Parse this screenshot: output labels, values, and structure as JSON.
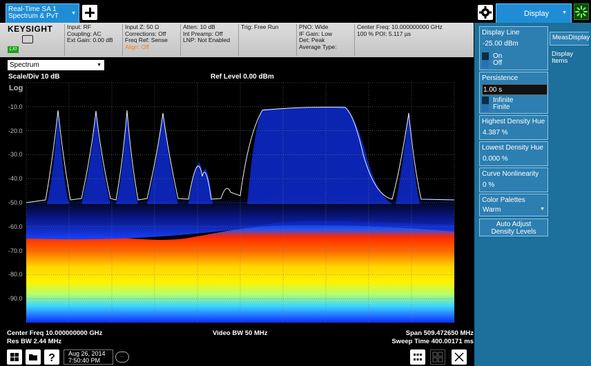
{
  "top_bar": {
    "active_tab": {
      "line1": "Real-Time SA 1",
      "line2": "Spectrum & PvT"
    },
    "add_button": "add",
    "menu_title": "Display"
  },
  "settings": {
    "brand": "KEYSIGHT",
    "lxi_badge": "LXI",
    "col1": [
      "Input: RF",
      "Coupling: AC",
      "Ext Gain: 0.00 dB"
    ],
    "col2": [
      "Input Z: 50 Ω",
      "Corrections: Off",
      "Freq Ref: Sense",
      "Align: Off"
    ],
    "col3": [
      "Atten: 10 dB",
      "Int Preamp: Off",
      "LNP: Not Enabled"
    ],
    "col4": [
      "Trig: Free Run"
    ],
    "col5": [
      "PNO: Wide",
      "IF Gain: Low",
      "Det: Peak",
      "Average Type:"
    ],
    "col6": [
      "Center Freq: 10.000000000 GHz",
      "100 % POI: 5.117 µs"
    ]
  },
  "plot": {
    "view": "Spectrum",
    "scale_label": "Scale/Div 10 dB",
    "ref_level": "Ref Level 0.00 dBm",
    "log_label": "Log",
    "y_ticks": [
      "-10.0",
      "-20.0",
      "-30.0",
      "-40.0",
      "-50.0",
      "-60.0",
      "-70.0",
      "-80.0",
      "-90.0"
    ],
    "center_freq": "Center Freq 10.000000000 GHz",
    "res_bw": "Res BW 2.44 MHz",
    "video_bw": "Video BW 50 MHz",
    "span": "Span 509.472650 MHz",
    "sweep_time": "Sweep Time 400.00171 ms"
  },
  "menu": {
    "side_tabs": [
      "MeasDisplay",
      "Display Items"
    ],
    "display_line": {
      "title": "Display Line",
      "value": "-25.00 dBm",
      "on": "On",
      "off": "Off"
    },
    "persistence": {
      "title": "Persistence",
      "value": "1.00 s",
      "on": "Infinite",
      "off": "Finite"
    },
    "highest_density_hue": {
      "title": "Highest Density Hue",
      "value": "4.387 %"
    },
    "lowest_density_hue": {
      "title": "Lowest Density Hue",
      "value": "0.000 %"
    },
    "curve_nonlinearity": {
      "title": "Curve Nonlinearity",
      "value": "0 %"
    },
    "color_palettes": {
      "title": "Color Palettes",
      "value": "Warm"
    },
    "auto_adjust": {
      "line1": "Auto Adjust",
      "line2": "Density Levels"
    }
  },
  "taskbar": {
    "date": "Aug 26, 2014",
    "time": "7:50:40 PM",
    "chat": "..."
  },
  "colors": {
    "accent_blue": "#1f8dd6",
    "menu_bg": "#1d6f9c",
    "settings_bg": "#d2d2d2",
    "warning": "#ff7a00"
  }
}
